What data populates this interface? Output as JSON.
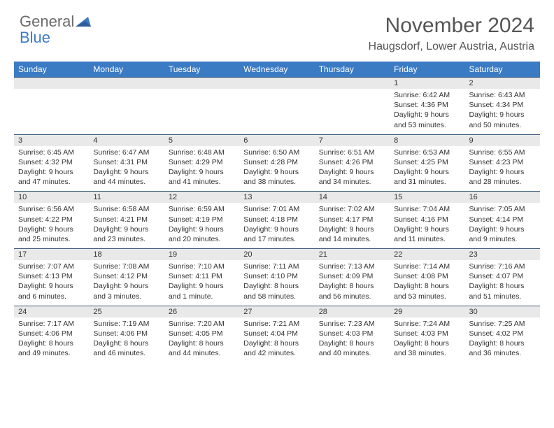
{
  "logo": {
    "word1": "General",
    "word2": "Blue"
  },
  "title": "November 2024",
  "location": "Haugsdorf, Lower Austria, Austria",
  "colors": {
    "header_bg": "#3b7bc4",
    "header_text": "#ffffff",
    "daynum_bg": "#e9e9e9",
    "border": "#3b5a7a",
    "body_text": "#333333",
    "title_text": "#555555"
  },
  "fonts": {
    "title_size": 30,
    "location_size": 16,
    "header_size": 12,
    "daynum_size": 11,
    "detail_size": 10.5
  },
  "days_of_week": [
    "Sunday",
    "Monday",
    "Tuesday",
    "Wednesday",
    "Thursday",
    "Friday",
    "Saturday"
  ],
  "weeks": [
    [
      {
        "num": "",
        "sunrise": "",
        "sunset": "",
        "daylight": ""
      },
      {
        "num": "",
        "sunrise": "",
        "sunset": "",
        "daylight": ""
      },
      {
        "num": "",
        "sunrise": "",
        "sunset": "",
        "daylight": ""
      },
      {
        "num": "",
        "sunrise": "",
        "sunset": "",
        "daylight": ""
      },
      {
        "num": "",
        "sunrise": "",
        "sunset": "",
        "daylight": ""
      },
      {
        "num": "1",
        "sunrise": "Sunrise: 6:42 AM",
        "sunset": "Sunset: 4:36 PM",
        "daylight": "Daylight: 9 hours and 53 minutes."
      },
      {
        "num": "2",
        "sunrise": "Sunrise: 6:43 AM",
        "sunset": "Sunset: 4:34 PM",
        "daylight": "Daylight: 9 hours and 50 minutes."
      }
    ],
    [
      {
        "num": "3",
        "sunrise": "Sunrise: 6:45 AM",
        "sunset": "Sunset: 4:32 PM",
        "daylight": "Daylight: 9 hours and 47 minutes."
      },
      {
        "num": "4",
        "sunrise": "Sunrise: 6:47 AM",
        "sunset": "Sunset: 4:31 PM",
        "daylight": "Daylight: 9 hours and 44 minutes."
      },
      {
        "num": "5",
        "sunrise": "Sunrise: 6:48 AM",
        "sunset": "Sunset: 4:29 PM",
        "daylight": "Daylight: 9 hours and 41 minutes."
      },
      {
        "num": "6",
        "sunrise": "Sunrise: 6:50 AM",
        "sunset": "Sunset: 4:28 PM",
        "daylight": "Daylight: 9 hours and 38 minutes."
      },
      {
        "num": "7",
        "sunrise": "Sunrise: 6:51 AM",
        "sunset": "Sunset: 4:26 PM",
        "daylight": "Daylight: 9 hours and 34 minutes."
      },
      {
        "num": "8",
        "sunrise": "Sunrise: 6:53 AM",
        "sunset": "Sunset: 4:25 PM",
        "daylight": "Daylight: 9 hours and 31 minutes."
      },
      {
        "num": "9",
        "sunrise": "Sunrise: 6:55 AM",
        "sunset": "Sunset: 4:23 PM",
        "daylight": "Daylight: 9 hours and 28 minutes."
      }
    ],
    [
      {
        "num": "10",
        "sunrise": "Sunrise: 6:56 AM",
        "sunset": "Sunset: 4:22 PM",
        "daylight": "Daylight: 9 hours and 25 minutes."
      },
      {
        "num": "11",
        "sunrise": "Sunrise: 6:58 AM",
        "sunset": "Sunset: 4:21 PM",
        "daylight": "Daylight: 9 hours and 23 minutes."
      },
      {
        "num": "12",
        "sunrise": "Sunrise: 6:59 AM",
        "sunset": "Sunset: 4:19 PM",
        "daylight": "Daylight: 9 hours and 20 minutes."
      },
      {
        "num": "13",
        "sunrise": "Sunrise: 7:01 AM",
        "sunset": "Sunset: 4:18 PM",
        "daylight": "Daylight: 9 hours and 17 minutes."
      },
      {
        "num": "14",
        "sunrise": "Sunrise: 7:02 AM",
        "sunset": "Sunset: 4:17 PM",
        "daylight": "Daylight: 9 hours and 14 minutes."
      },
      {
        "num": "15",
        "sunrise": "Sunrise: 7:04 AM",
        "sunset": "Sunset: 4:16 PM",
        "daylight": "Daylight: 9 hours and 11 minutes."
      },
      {
        "num": "16",
        "sunrise": "Sunrise: 7:05 AM",
        "sunset": "Sunset: 4:14 PM",
        "daylight": "Daylight: 9 hours and 9 minutes."
      }
    ],
    [
      {
        "num": "17",
        "sunrise": "Sunrise: 7:07 AM",
        "sunset": "Sunset: 4:13 PM",
        "daylight": "Daylight: 9 hours and 6 minutes."
      },
      {
        "num": "18",
        "sunrise": "Sunrise: 7:08 AM",
        "sunset": "Sunset: 4:12 PM",
        "daylight": "Daylight: 9 hours and 3 minutes."
      },
      {
        "num": "19",
        "sunrise": "Sunrise: 7:10 AM",
        "sunset": "Sunset: 4:11 PM",
        "daylight": "Daylight: 9 hours and 1 minute."
      },
      {
        "num": "20",
        "sunrise": "Sunrise: 7:11 AM",
        "sunset": "Sunset: 4:10 PM",
        "daylight": "Daylight: 8 hours and 58 minutes."
      },
      {
        "num": "21",
        "sunrise": "Sunrise: 7:13 AM",
        "sunset": "Sunset: 4:09 PM",
        "daylight": "Daylight: 8 hours and 56 minutes."
      },
      {
        "num": "22",
        "sunrise": "Sunrise: 7:14 AM",
        "sunset": "Sunset: 4:08 PM",
        "daylight": "Daylight: 8 hours and 53 minutes."
      },
      {
        "num": "23",
        "sunrise": "Sunrise: 7:16 AM",
        "sunset": "Sunset: 4:07 PM",
        "daylight": "Daylight: 8 hours and 51 minutes."
      }
    ],
    [
      {
        "num": "24",
        "sunrise": "Sunrise: 7:17 AM",
        "sunset": "Sunset: 4:06 PM",
        "daylight": "Daylight: 8 hours and 49 minutes."
      },
      {
        "num": "25",
        "sunrise": "Sunrise: 7:19 AM",
        "sunset": "Sunset: 4:06 PM",
        "daylight": "Daylight: 8 hours and 46 minutes."
      },
      {
        "num": "26",
        "sunrise": "Sunrise: 7:20 AM",
        "sunset": "Sunset: 4:05 PM",
        "daylight": "Daylight: 8 hours and 44 minutes."
      },
      {
        "num": "27",
        "sunrise": "Sunrise: 7:21 AM",
        "sunset": "Sunset: 4:04 PM",
        "daylight": "Daylight: 8 hours and 42 minutes."
      },
      {
        "num": "28",
        "sunrise": "Sunrise: 7:23 AM",
        "sunset": "Sunset: 4:03 PM",
        "daylight": "Daylight: 8 hours and 40 minutes."
      },
      {
        "num": "29",
        "sunrise": "Sunrise: 7:24 AM",
        "sunset": "Sunset: 4:03 PM",
        "daylight": "Daylight: 8 hours and 38 minutes."
      },
      {
        "num": "30",
        "sunrise": "Sunrise: 7:25 AM",
        "sunset": "Sunset: 4:02 PM",
        "daylight": "Daylight: 8 hours and 36 minutes."
      }
    ]
  ]
}
